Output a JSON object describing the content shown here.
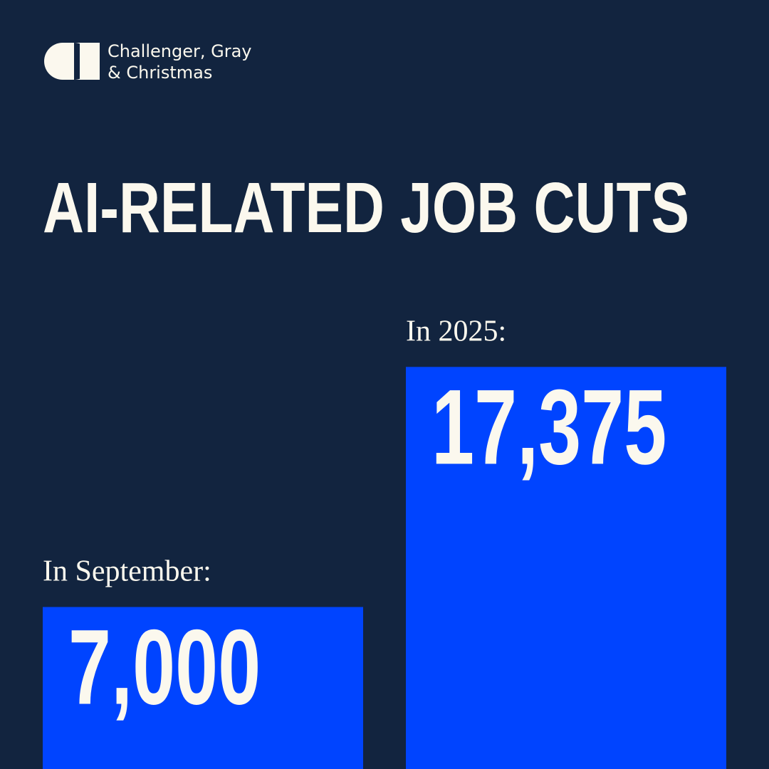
{
  "brand": [
    "Challenger, Gray",
    "& Christmas"
  ],
  "chart_data": {
    "type": "bar",
    "title": "AI-RELATED JOB CUTS",
    "categories": [
      "In September:",
      "In 2025:"
    ],
    "values": [
      7000,
      17375
    ],
    "value_labels": [
      "7,000",
      "17,375"
    ],
    "color": "#0044ff"
  }
}
